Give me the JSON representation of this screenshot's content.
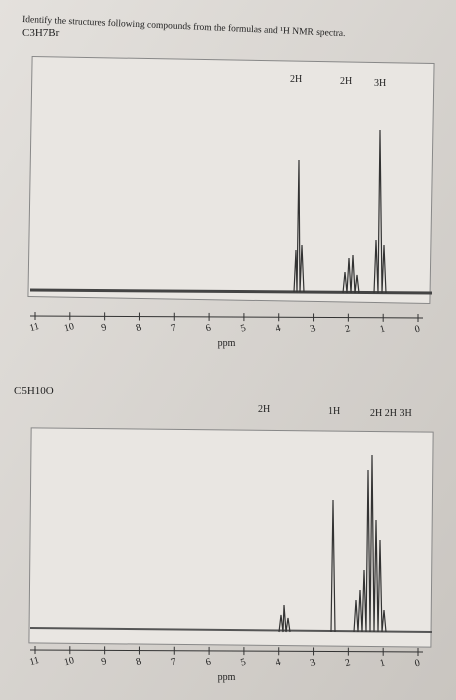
{
  "header": {
    "instruction": "Identify the structures following compounds from the formulas and ¹H NMR spectra."
  },
  "spectra": [
    {
      "formula": "C3H7Br",
      "integrations": [
        "2H",
        "2H",
        "3H"
      ],
      "ticks": [
        11,
        10,
        9,
        8,
        7,
        6,
        5,
        4,
        3,
        2,
        1,
        0
      ],
      "x_label": "ppm"
    },
    {
      "formula": "C5H10O",
      "integrations": [
        "2H",
        "1H",
        "2H 2H 3H"
      ],
      "ticks": [
        11,
        10,
        9,
        8,
        7,
        6,
        5,
        4,
        3,
        2,
        1,
        0
      ],
      "x_label": "ppm"
    }
  ]
}
